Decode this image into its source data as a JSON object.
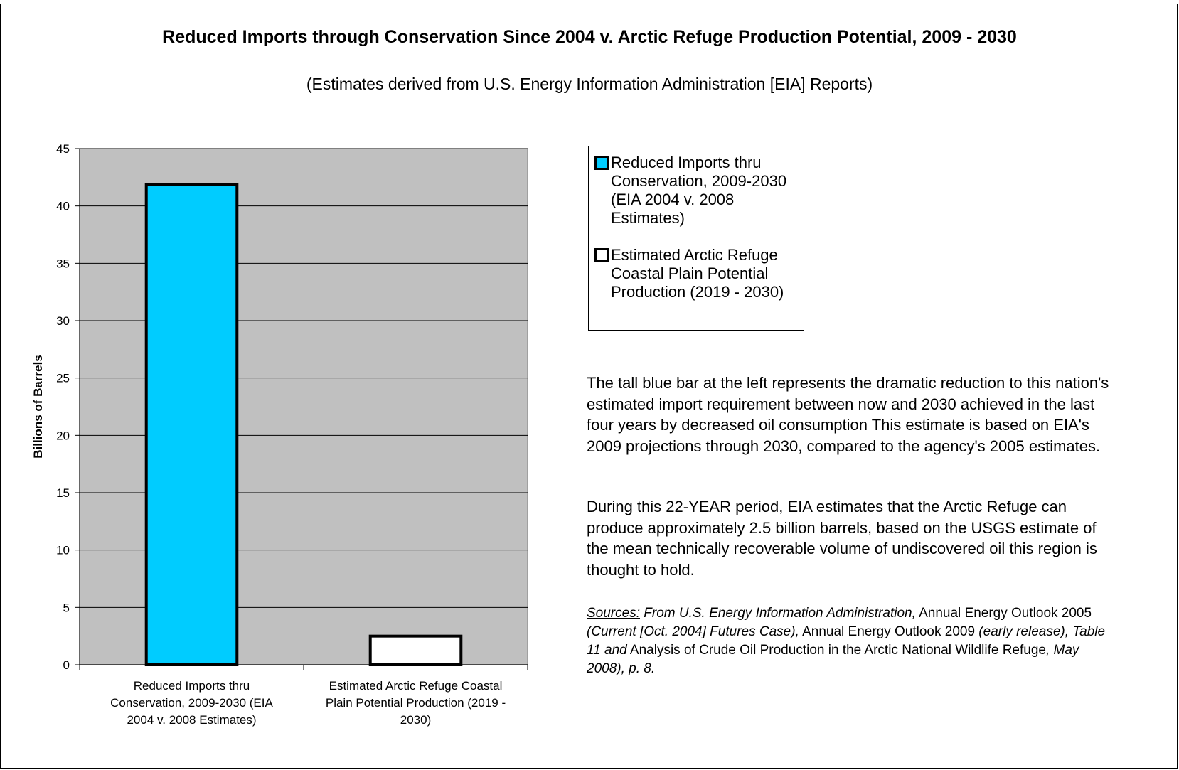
{
  "title": "Reduced Imports through Conservation Since 2004 v. Arctic Refuge Production Potential, 2009 - 2030",
  "subtitle": "(Estimates derived from U.S. Energy Information Administration [EIA] Reports)",
  "chart_data": {
    "type": "bar",
    "title": "Reduced Imports through Conservation Since 2004 v. Arctic Refuge Production Potential, 2009 - 2030",
    "subtitle": "(Estimates derived from U.S. Energy Information Administration [EIA] Reports)",
    "ylabel": "Billions of Barrels",
    "xlabel": "",
    "ylim": [
      0,
      45
    ],
    "yticks": [
      0,
      5,
      10,
      15,
      20,
      25,
      30,
      35,
      40,
      45
    ],
    "grid": true,
    "legend_position": "right",
    "plot_background": "#C0C0C0",
    "categories": [
      [
        "Reduced Imports thru",
        "Conservation, 2009-2030 (EIA",
        "2004 v. 2008 Estimates)"
      ],
      [
        "Estimated Arctic Refuge Coastal",
        "Plain Potential Production (2019 -",
        "2030)"
      ]
    ],
    "values": [
      41.9,
      2.5
    ],
    "colors": [
      "#00CCFF",
      "#FFFFFF"
    ]
  },
  "legend": [
    {
      "label": "Reduced Imports thru Conservation, 2009-2030 (EIA 2004 v. 2008 Estimates)",
      "color": "#00CCFF"
    },
    {
      "label": "Estimated Arctic Refuge Coastal Plain Potential Production (2019 - 2030)",
      "color": "#FFFFFF"
    }
  ],
  "paragraphs": [
    "The tall blue bar at the left represents the dramatic reduction to this nation's estimated import requirement between now and 2030 achieved in the last four years by decreased oil consumption  This estimate is based on EIA's 2009 projections through 2030, compared to the agency's 2005 estimates.",
    "During this 22-YEAR period, EIA estimates that the Arctic Refuge can produce approximately 2.5 billion barrels,  based on the USGS estimate of the  mean technically recoverable volume of undiscovered oil this region is thought to hold."
  ],
  "sources": {
    "label": "Sources:",
    "part1": " From U.S. Energy Information Administration,",
    "part2": " Annual Energy Outlook 2005",
    "part3": " (Current [Oct. 2004] Futures Case),",
    "part4": " Annual Energy Outlook 2009",
    "part5": " (early release), Table 11 and",
    "part6": " Analysis of Crude Oil Production in the Arctic National Wildlife Refuge",
    "part7": ", May 2008), p. 8."
  }
}
